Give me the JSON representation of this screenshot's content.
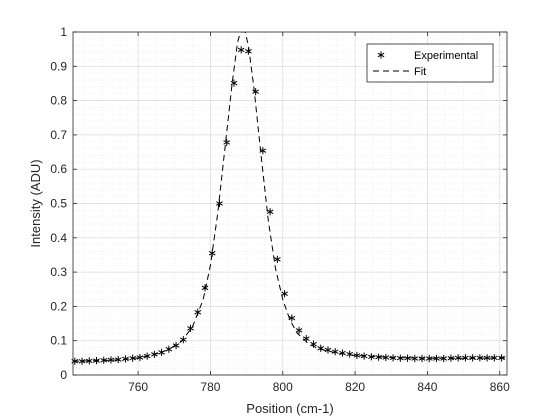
{
  "chart_data": {
    "type": "line",
    "xlabel": "Position (cm-1)",
    "ylabel": "Intensity (ADU)",
    "xlim": [
      742,
      862
    ],
    "ylim": [
      0,
      1
    ],
    "xticks": [
      760,
      780,
      800,
      820,
      840,
      860
    ],
    "yticks": [
      0,
      0.1,
      0.2,
      0.3,
      0.4,
      0.5,
      0.6,
      0.7,
      0.8,
      0.9,
      1
    ],
    "ytick_labels": [
      "0",
      "0.1",
      "0.2",
      "0.3",
      "0.4",
      "0.5",
      "0.6",
      "0.7",
      "0.8",
      "0.9",
      "1"
    ],
    "grid": true,
    "minor_grid": true,
    "legend_position": "top-right",
    "series": [
      {
        "name": "Experimental",
        "style": "markers",
        "marker": "asterisk",
        "color": "#000000",
        "points": [
          [
            742.5,
            0.04
          ],
          [
            744.5,
            0.04
          ],
          [
            746.5,
            0.041
          ],
          [
            748.5,
            0.042
          ],
          [
            750.5,
            0.043
          ],
          [
            752.5,
            0.044
          ],
          [
            754.5,
            0.045
          ],
          [
            756.5,
            0.047
          ],
          [
            758.5,
            0.049
          ],
          [
            760.5,
            0.051
          ],
          [
            762.5,
            0.055
          ],
          [
            764.5,
            0.06
          ],
          [
            766.5,
            0.066
          ],
          [
            768.5,
            0.075
          ],
          [
            770.5,
            0.086
          ],
          [
            772.5,
            0.103
          ],
          [
            774.5,
            0.136
          ],
          [
            776.5,
            0.183
          ],
          [
            778.5,
            0.254
          ],
          [
            780.5,
            0.355
          ],
          [
            782.5,
            0.5
          ],
          [
            784.5,
            0.678
          ],
          [
            786.5,
            0.851
          ],
          [
            788.5,
            0.948
          ],
          [
            790.5,
            0.944
          ],
          [
            792.5,
            0.826
          ],
          [
            794.5,
            0.654
          ],
          [
            796.5,
            0.476
          ],
          [
            798.5,
            0.337
          ],
          [
            800.5,
            0.237
          ],
          [
            802.5,
            0.166
          ],
          [
            804.5,
            0.13
          ],
          [
            806.5,
            0.106
          ],
          [
            808.5,
            0.09
          ],
          [
            810.5,
            0.078
          ],
          [
            812.5,
            0.073
          ],
          [
            814.5,
            0.068
          ],
          [
            816.5,
            0.064
          ],
          [
            818.5,
            0.061
          ],
          [
            820.5,
            0.057
          ],
          [
            822.5,
            0.055
          ],
          [
            824.5,
            0.053
          ],
          [
            826.5,
            0.052
          ],
          [
            828.5,
            0.051
          ],
          [
            830.5,
            0.05
          ],
          [
            832.5,
            0.049
          ],
          [
            834.5,
            0.049
          ],
          [
            836.5,
            0.048
          ],
          [
            838.5,
            0.048
          ],
          [
            840.5,
            0.048
          ],
          [
            842.5,
            0.048
          ],
          [
            844.5,
            0.048
          ],
          [
            846.5,
            0.049
          ],
          [
            848.5,
            0.05
          ],
          [
            850.5,
            0.05
          ],
          [
            852.5,
            0.05
          ],
          [
            854.5,
            0.05
          ],
          [
            856.5,
            0.05
          ],
          [
            858.5,
            0.05
          ],
          [
            860.5,
            0.05
          ]
        ]
      },
      {
        "name": "Fit",
        "style": "dashed-line",
        "color": "#000000",
        "points": [
          [
            742,
            0.04
          ],
          [
            750,
            0.042
          ],
          [
            756,
            0.045
          ],
          [
            760,
            0.05
          ],
          [
            764,
            0.058
          ],
          [
            768,
            0.072
          ],
          [
            772,
            0.098
          ],
          [
            775,
            0.14
          ],
          [
            778,
            0.22
          ],
          [
            780,
            0.32
          ],
          [
            782,
            0.47
          ],
          [
            784,
            0.66
          ],
          [
            786,
            0.85
          ],
          [
            787.5,
            0.97
          ],
          [
            788.3,
            1.0
          ],
          [
            789.6,
            1.0
          ],
          [
            790.5,
            0.96
          ],
          [
            792,
            0.84
          ],
          [
            794,
            0.64
          ],
          [
            796,
            0.45
          ],
          [
            798,
            0.31
          ],
          [
            800,
            0.22
          ],
          [
            802,
            0.16
          ],
          [
            804,
            0.122
          ],
          [
            807,
            0.092
          ],
          [
            810,
            0.076
          ],
          [
            815,
            0.064
          ],
          [
            820,
            0.057
          ],
          [
            830,
            0.051
          ],
          [
            840,
            0.049
          ],
          [
            850,
            0.049
          ],
          [
            862,
            0.05
          ]
        ]
      }
    ]
  }
}
